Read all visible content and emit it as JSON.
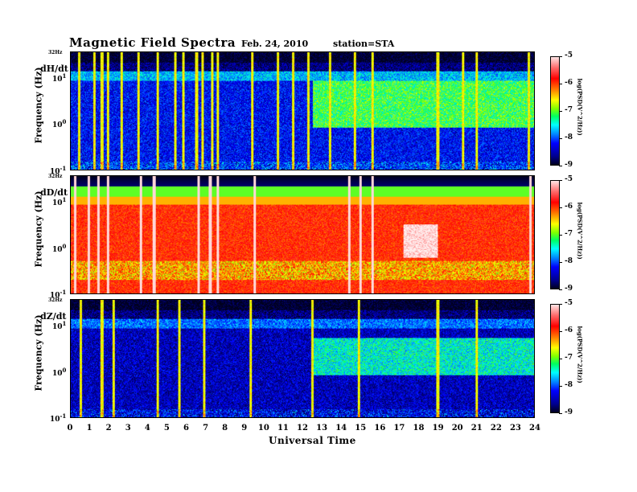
{
  "header": {
    "title": "Magnetic  Field  Spectra",
    "date": "Feb. 24, 2010",
    "station": "station=STA"
  },
  "panels": [
    {
      "component": "dH/dt",
      "top_label": "32Hz",
      "ylabel": "Frequency  (Hz)"
    },
    {
      "component": "dD/dt",
      "top_label": "32Hz",
      "ylabel": "Frequency  (Hz)"
    },
    {
      "component": "dZ/dt",
      "top_label": "32Hz",
      "ylabel": "Frequency  (Hz)"
    }
  ],
  "y_ticks": [
    {
      "base": "10",
      "exp": "1"
    },
    {
      "base": "10",
      "exp": "0"
    },
    {
      "base": "10",
      "exp": "-1"
    }
  ],
  "colorbar": {
    "label": "log(PSD(V^2/Hz))",
    "ticks": [
      "-5",
      "-6",
      "-7",
      "-8",
      "-9"
    ]
  },
  "xaxis": {
    "label": "Universal  Time",
    "ticks": [
      "0",
      "1",
      "2",
      "3",
      "4",
      "5",
      "6",
      "7",
      "8",
      "9",
      "10",
      "11",
      "12",
      "13",
      "14",
      "15",
      "16",
      "17",
      "18",
      "19",
      "20",
      "21",
      "22",
      "23",
      "24"
    ]
  },
  "chart_data": [
    {
      "type": "heatmap",
      "title": "dH/dt",
      "xlabel": "Universal  Time",
      "ylabel": "Frequency  (Hz)",
      "xlim": [
        0,
        24
      ],
      "ylim": [
        0.1,
        32
      ],
      "y_scale": "log",
      "z_range": [
        -9,
        -5
      ],
      "z_label": "log(PSD(V^2/Hz))",
      "baseline_log_psd": -8.3,
      "enhanced_band": {
        "t_start": 12.5,
        "t_end": 24,
        "f_low": 0.8,
        "f_high": 8,
        "log_psd": -7.3
      },
      "spike_times": [
        0.4,
        1.2,
        1.6,
        1.9,
        2.6,
        3.5,
        4.5,
        5.4,
        5.8,
        6.5,
        6.8,
        7.3,
        7.6,
        9.4,
        10.7,
        11.5,
        12.3,
        13.4,
        14.7,
        15.6,
        19.0,
        20.3,
        21.0,
        23.7
      ]
    },
    {
      "type": "heatmap",
      "title": "dD/dt",
      "xlabel": "Universal  Time",
      "ylabel": "Frequency  (Hz)",
      "xlim": [
        0,
        24
      ],
      "ylim": [
        0.1,
        32
      ],
      "y_scale": "log",
      "z_range": [
        -9,
        -5
      ],
      "z_label": "log(PSD(V^2/Hz))",
      "baseline_log_psd": -6.0,
      "enhanced_band": {
        "t_start": 17.2,
        "t_end": 19.0,
        "f_low": 0.6,
        "f_high": 3,
        "log_psd": -5.0
      },
      "spike_times": [
        0.2,
        0.9,
        1.4,
        1.9,
        3.6,
        4.3,
        6.6,
        7.2,
        7.6,
        9.5,
        14.4,
        15.0,
        15.6,
        23.8
      ]
    },
    {
      "type": "heatmap",
      "title": "dZ/dt",
      "xlabel": "Universal  Time",
      "ylabel": "Frequency  (Hz)",
      "xlim": [
        0,
        24
      ],
      "ylim": [
        0.1,
        32
      ],
      "y_scale": "log",
      "z_range": [
        -9,
        -5
      ],
      "z_label": "log(PSD(V^2/Hz))",
      "baseline_log_psd": -8.5,
      "enhanced_band": {
        "t_start": 12.5,
        "t_end": 24,
        "f_low": 0.8,
        "f_high": 5,
        "log_psd": -7.6
      },
      "spike_times": [
        0.5,
        1.6,
        2.2,
        4.5,
        5.6,
        6.9,
        9.3,
        12.5,
        14.9,
        19.0,
        21.0
      ]
    }
  ]
}
